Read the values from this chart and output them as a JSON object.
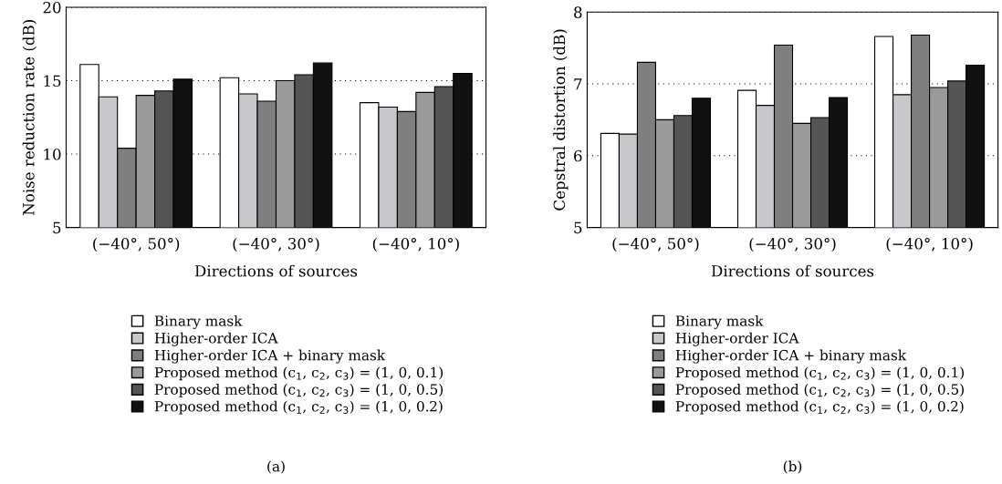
{
  "chart_data": [
    {
      "type": "bar",
      "xlabel": "Directions of sources",
      "ylabel": "Noise reduction rate (dB)",
      "categories": [
        "(−40°, 50°)",
        "(−40°, 30°)",
        "(−40°, 10°)"
      ],
      "ylim": [
        5,
        20
      ],
      "yticks": [
        5,
        10,
        15,
        20
      ],
      "grid": "y",
      "legend": "bottom",
      "annotations": [
        "(a)"
      ],
      "series": [
        {
          "name": "Binary mask",
          "color": "#ffffff",
          "values": [
            16.1,
            15.2,
            13.5
          ]
        },
        {
          "name": "Higher-order ICA",
          "color": "#c8c8cc",
          "values": [
            13.9,
            14.1,
            13.2
          ]
        },
        {
          "name": "Higher-order ICA + binary mask",
          "color": "#7f7f7f",
          "values": [
            10.4,
            13.6,
            12.9
          ]
        },
        {
          "name": "Proposed method (c$_{1}$, c$_{2}$, c$_{3}$) = (1, 0, 0.1)",
          "color": "#9a9a9a",
          "values": [
            14.0,
            15.0,
            14.2
          ]
        },
        {
          "name": "Proposed method (c$_{1}$, c$_{2}$, c$_{3}$) = (1, 0, 0.5)",
          "color": "#555555",
          "values": [
            14.3,
            15.4,
            14.6
          ]
        },
        {
          "name": "Proposed method (c$_{1}$, c$_{2}$, c$_{3}$) = (1, 0, 0.2)",
          "color": "#111111",
          "values": [
            15.1,
            16.2,
            15.5
          ]
        }
      ]
    },
    {
      "type": "bar",
      "xlabel": "Directions of sources",
      "ylabel": "Cepstral distortion (dB)",
      "categories": [
        "(−40°, 50°)",
        "(−40°, 30°)",
        "(−40°, 10°)"
      ],
      "ylim": [
        5,
        8
      ],
      "yticks": [
        5,
        6,
        7,
        8
      ],
      "grid": "y",
      "legend": "bottom",
      "annotations": [
        "(b)"
      ],
      "series": [
        {
          "name": "Binary mask",
          "color": "#ffffff",
          "values": [
            6.31,
            6.91,
            7.66
          ]
        },
        {
          "name": "Higher-order ICA",
          "color": "#c8c8cc",
          "values": [
            6.3,
            6.7,
            6.85
          ]
        },
        {
          "name": "Higher-order ICA + binary mask",
          "color": "#7f7f7f",
          "values": [
            7.3,
            7.54,
            7.68
          ]
        },
        {
          "name": "Proposed method (c$_{1}$, c$_{2}$, c$_{3}$) = (1, 0, 0.1)",
          "color": "#9a9a9a",
          "values": [
            6.5,
            6.45,
            6.95
          ]
        },
        {
          "name": "Proposed method (c$_{1}$, c$_{2}$, c$_{3}$) = (1, 0, 0.5)",
          "color": "#555555",
          "values": [
            6.56,
            6.53,
            7.04
          ]
        },
        {
          "name": "Proposed method (c$_{1}$, c$_{2}$, c$_{3}$) = (1, 0, 0.2)",
          "color": "#111111",
          "values": [
            6.8,
            6.81,
            7.26
          ]
        }
      ]
    }
  ]
}
